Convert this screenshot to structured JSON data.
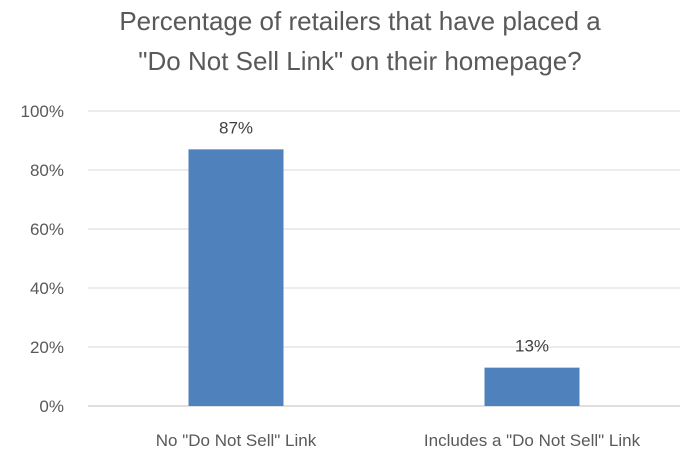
{
  "chart_data": {
    "type": "bar",
    "title": "Percentage of retailers that have placed a \"Do Not Sell Link\" on their homepage?",
    "title_lines": [
      "Percentage of retailers that have placed a",
      "\"Do Not Sell Link\" on their homepage?"
    ],
    "categories": [
      "No \"Do Not Sell\" Link",
      "Includes a \"Do Not Sell\" Link"
    ],
    "values": [
      87,
      13
    ],
    "data_labels": [
      "87%",
      "13%"
    ],
    "xlabel": "",
    "ylabel": "",
    "ylim": [
      0,
      100
    ],
    "yticks": [
      0,
      20,
      40,
      60,
      80,
      100
    ],
    "ytick_labels": [
      "0%",
      "20%",
      "40%",
      "60%",
      "80%",
      "100%"
    ],
    "grid": true,
    "legend": "none",
    "colors": {
      "bar": "#4f81bd"
    }
  }
}
